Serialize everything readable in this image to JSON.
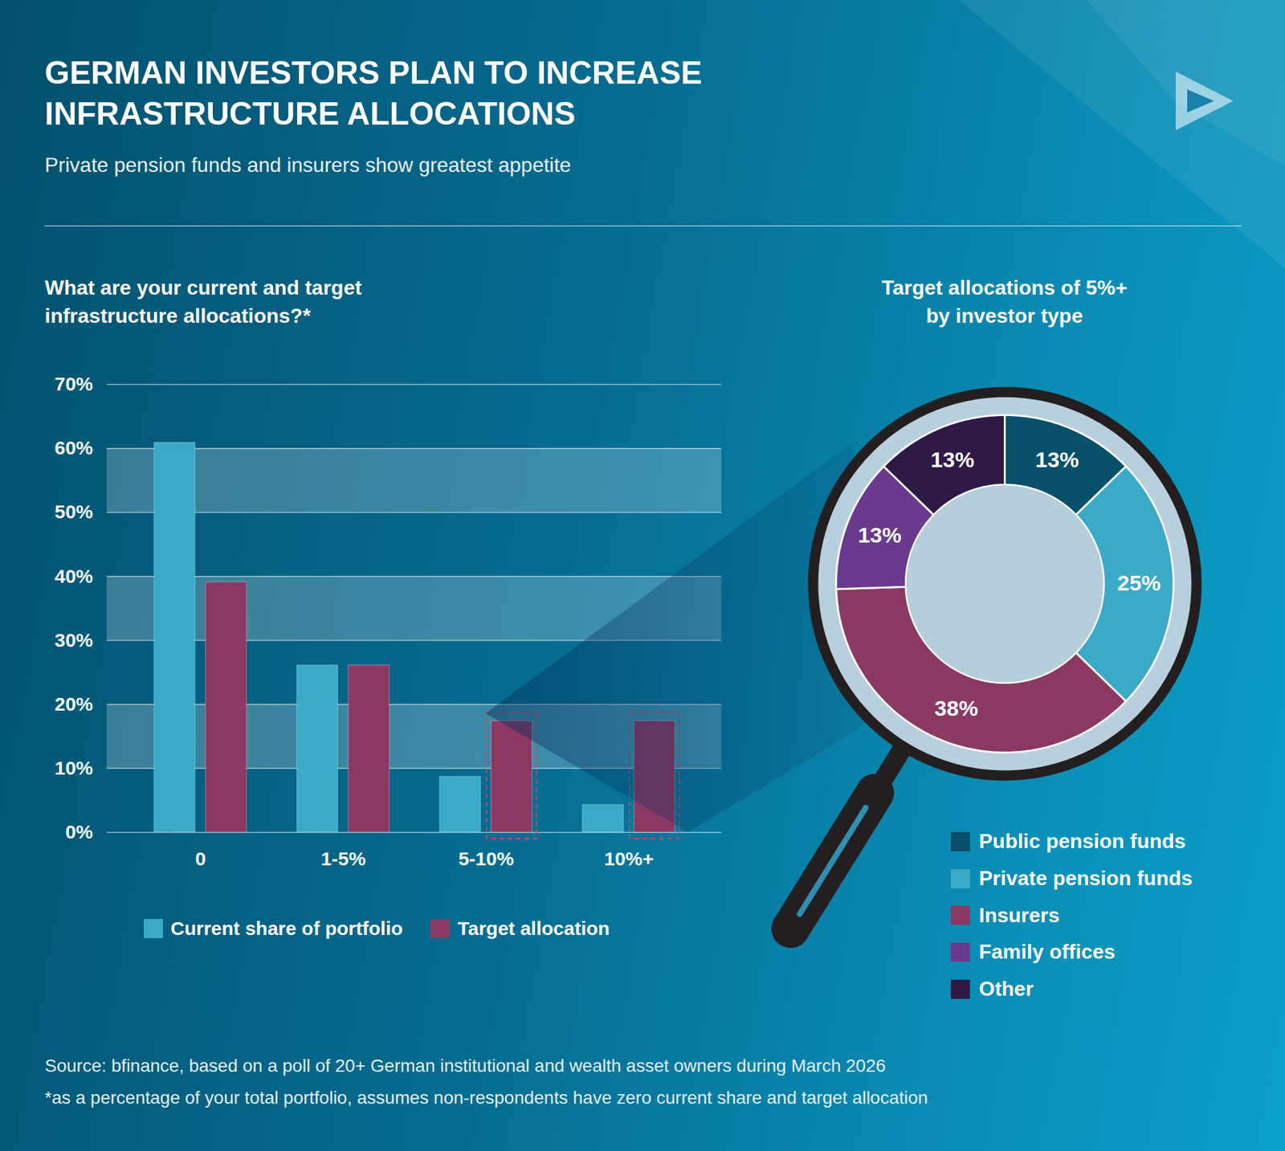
{
  "title": "GERMAN INVESTORS PLAN TO INCREASE INFRASTRUCTURE ALLOCATIONS",
  "subtitle": "Private pension funds and insurers show greatest appetite",
  "chart_data": [
    {
      "type": "bar",
      "title": "What are your current and target infrastructure allocations?*",
      "categories": [
        "0",
        "1-5%",
        "5-10%",
        "10%+"
      ],
      "series": [
        {
          "name": "Current share of portfolio",
          "color": "#3aaac7",
          "values": [
            60.9,
            26.1,
            8.7,
            4.3
          ]
        },
        {
          "name": "Target allocation",
          "color": "#8b3963",
          "values": [
            39.1,
            26.1,
            17.4,
            17.4
          ]
        }
      ],
      "ylim": [
        0,
        70
      ],
      "yticks": [
        {
          "value": 0,
          "label": "0%"
        },
        {
          "value": 10,
          "label": "10%"
        },
        {
          "value": 20,
          "label": "20%"
        },
        {
          "value": 30,
          "label": "30%"
        },
        {
          "value": 40,
          "label": "40%"
        },
        {
          "value": 50,
          "label": "50%"
        },
        {
          "value": 60,
          "label": "60%"
        },
        {
          "value": 70,
          "label": "70%"
        }
      ],
      "grid": true,
      "legend": "bottom"
    },
    {
      "type": "pie",
      "title": "Target allocations of 5%+ by investor type",
      "categories": [
        "Public pension funds",
        "Private pension funds",
        "Insurers",
        "Family offices",
        "Other"
      ],
      "values": [
        13,
        25,
        38,
        13,
        13
      ],
      "value_labels": [
        "13%",
        "25%",
        "38%",
        "13%",
        "13%"
      ],
      "colors": [
        "#08506a",
        "#3aaac7",
        "#8b3963",
        "#6a3a8f",
        "#2e1a45"
      ],
      "data_labels": true,
      "legend": "bottom"
    }
  ],
  "source": "Source: bfinance, based on a poll of 20+ German institutional and wealth asset owners during March 2026",
  "footnote": "*as a percentage of your total portfolio, assumes non-respondents have zero current share and target allocation"
}
